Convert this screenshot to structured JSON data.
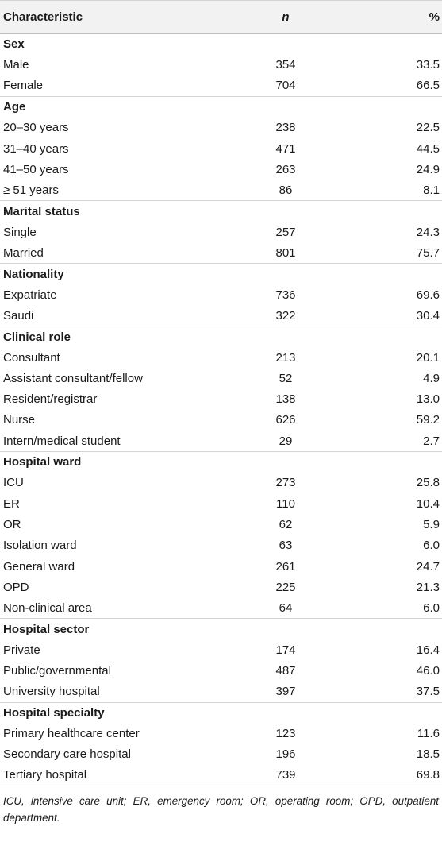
{
  "table": {
    "header": {
      "characteristic": "Characteristic",
      "n": "n",
      "percent": "%"
    },
    "groups": [
      {
        "title": "Sex",
        "rows": [
          {
            "label": "Male",
            "n": "354",
            "pct": "33.5"
          },
          {
            "label": "Female",
            "n": "704",
            "pct": "66.5"
          }
        ]
      },
      {
        "title": "Age",
        "rows": [
          {
            "label": "20–30 years",
            "n": "238",
            "pct": "22.5"
          },
          {
            "label": "31–40 years",
            "n": "471",
            "pct": "44.5"
          },
          {
            "label": "41–50 years",
            "n": "263",
            "pct": "24.9"
          },
          {
            "label": "≥ 51 years",
            "n": "86",
            "pct": "8.1"
          }
        ]
      },
      {
        "title": "Marital status",
        "rows": [
          {
            "label": "Single",
            "n": "257",
            "pct": "24.3"
          },
          {
            "label": "Married",
            "n": "801",
            "pct": "75.7"
          }
        ]
      },
      {
        "title": "Nationality",
        "rows": [
          {
            "label": "Expatriate",
            "n": "736",
            "pct": "69.6"
          },
          {
            "label": "Saudi",
            "n": "322",
            "pct": "30.4"
          }
        ]
      },
      {
        "title": "Clinical role",
        "rows": [
          {
            "label": "Consultant",
            "n": "213",
            "pct": "20.1"
          },
          {
            "label": "Assistant consultant/fellow",
            "n": "52",
            "pct": "4.9"
          },
          {
            "label": "Resident/registrar",
            "n": "138",
            "pct": "13.0"
          },
          {
            "label": "Nurse",
            "n": "626",
            "pct": "59.2"
          },
          {
            "label": "Intern/medical student",
            "n": "29",
            "pct": "2.7"
          }
        ]
      },
      {
        "title": "Hospital ward",
        "rows": [
          {
            "label": "ICU",
            "n": "273",
            "pct": "25.8"
          },
          {
            "label": "ER",
            "n": "110",
            "pct": "10.4"
          },
          {
            "label": "OR",
            "n": "62",
            "pct": "5.9"
          },
          {
            "label": "Isolation ward",
            "n": "63",
            "pct": "6.0"
          },
          {
            "label": "General ward",
            "n": "261",
            "pct": "24.7"
          },
          {
            "label": "OPD",
            "n": "225",
            "pct": "21.3"
          },
          {
            "label": "Non-clinical area",
            "n": "64",
            "pct": "6.0"
          }
        ]
      },
      {
        "title": "Hospital sector",
        "rows": [
          {
            "label": "Private",
            "n": "174",
            "pct": "16.4"
          },
          {
            "label": "Public/governmental",
            "n": "487",
            "pct": "46.0"
          },
          {
            "label": "University hospital",
            "n": "397",
            "pct": "37.5"
          }
        ]
      },
      {
        "title": "Hospital specialty",
        "rows": [
          {
            "label": "Primary healthcare center",
            "n": "123",
            "pct": "11.6"
          },
          {
            "label": "Secondary care hospital",
            "n": "196",
            "pct": "18.5"
          },
          {
            "label": "Tertiary hospital",
            "n": "739",
            "pct": "69.8"
          }
        ]
      }
    ],
    "footnote": "ICU, intensive care unit; ER, emergency room; OR, operating room; OPD, outpatient department."
  }
}
